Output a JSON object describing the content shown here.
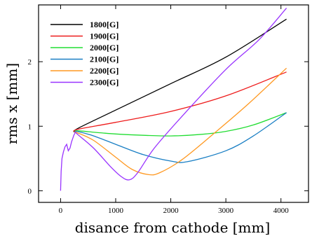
{
  "chart_data": {
    "type": "line",
    "title": "",
    "xlabel": "disance from cathode [mm]",
    "ylabel": "rms x [mm]",
    "xlim": [
      -400,
      4500
    ],
    "ylim": [
      -0.18,
      2.88
    ],
    "x_ticks": [
      {
        "value": 0,
        "label": "0"
      },
      {
        "value": 1000,
        "label": "1000"
      },
      {
        "value": 2000,
        "label": "2000"
      },
      {
        "value": 3000,
        "label": "3000"
      },
      {
        "value": 4000,
        "label": "4000"
      }
    ],
    "y_ticks": [
      {
        "value": 0,
        "label": "0"
      },
      {
        "value": 1,
        "label": "1"
      },
      {
        "value": 2,
        "label": "2"
      }
    ],
    "grid": false,
    "legend_position": "top-left",
    "common_prefix": [
      [
        0,
        0
      ],
      [
        10,
        0.3
      ],
      [
        25,
        0.5
      ],
      [
        50,
        0.6
      ],
      [
        80,
        0.68
      ],
      [
        110,
        0.72
      ],
      [
        140,
        0.62
      ],
      [
        170,
        0.66
      ],
      [
        200,
        0.76
      ],
      [
        240,
        0.86
      ],
      [
        270,
        0.91
      ]
    ],
    "series": [
      {
        "name": "1800[G]",
        "color": "#000000",
        "points": [
          [
            270,
            0.91
          ],
          [
            300,
            0.96
          ],
          [
            1000,
            1.25
          ],
          [
            2000,
            1.66
          ],
          [
            3000,
            2.07
          ],
          [
            4100,
            2.66
          ]
        ]
      },
      {
        "name": "1900[G]",
        "color": "#ee1c1c",
        "points": [
          [
            270,
            0.91
          ],
          [
            300,
            0.95
          ],
          [
            1000,
            1.06
          ],
          [
            2000,
            1.23
          ],
          [
            3000,
            1.47
          ],
          [
            4100,
            1.84
          ]
        ]
      },
      {
        "name": "2000[G]",
        "color": "#22dd33",
        "points": [
          [
            270,
            0.91
          ],
          [
            300,
            0.93
          ],
          [
            700,
            0.9
          ],
          [
            1000,
            0.88
          ],
          [
            1500,
            0.86
          ],
          [
            2000,
            0.85
          ],
          [
            2500,
            0.87
          ],
          [
            3000,
            0.92
          ],
          [
            3500,
            1.02
          ],
          [
            4100,
            1.21
          ]
        ]
      },
      {
        "name": "2100[G]",
        "color": "#1a7fc4",
        "points": [
          [
            270,
            0.91
          ],
          [
            300,
            0.92
          ],
          [
            600,
            0.85
          ],
          [
            1000,
            0.72
          ],
          [
            1500,
            0.56
          ],
          [
            2000,
            0.46
          ],
          [
            2300,
            0.45
          ],
          [
            3000,
            0.62
          ],
          [
            3500,
            0.85
          ],
          [
            4100,
            1.21
          ]
        ]
      },
      {
        "name": "2200[G]",
        "color": "#ff9922",
        "points": [
          [
            270,
            0.91
          ],
          [
            300,
            0.9
          ],
          [
            600,
            0.78
          ],
          [
            1000,
            0.52
          ],
          [
            1300,
            0.33
          ],
          [
            1600,
            0.25
          ],
          [
            1800,
            0.28
          ],
          [
            2200,
            0.48
          ],
          [
            2800,
            0.9
          ],
          [
            3400,
            1.34
          ],
          [
            4100,
            1.9
          ]
        ]
      },
      {
        "name": "2300[G]",
        "color": "#9933ff",
        "points": [
          [
            270,
            0.91
          ],
          [
            300,
            0.88
          ],
          [
            600,
            0.66
          ],
          [
            900,
            0.38
          ],
          [
            1100,
            0.22
          ],
          [
            1250,
            0.17
          ],
          [
            1400,
            0.28
          ],
          [
            1700,
            0.66
          ],
          [
            2200,
            1.15
          ],
          [
            3000,
            1.88
          ],
          [
            3600,
            2.34
          ],
          [
            4100,
            2.83
          ]
        ]
      }
    ]
  }
}
